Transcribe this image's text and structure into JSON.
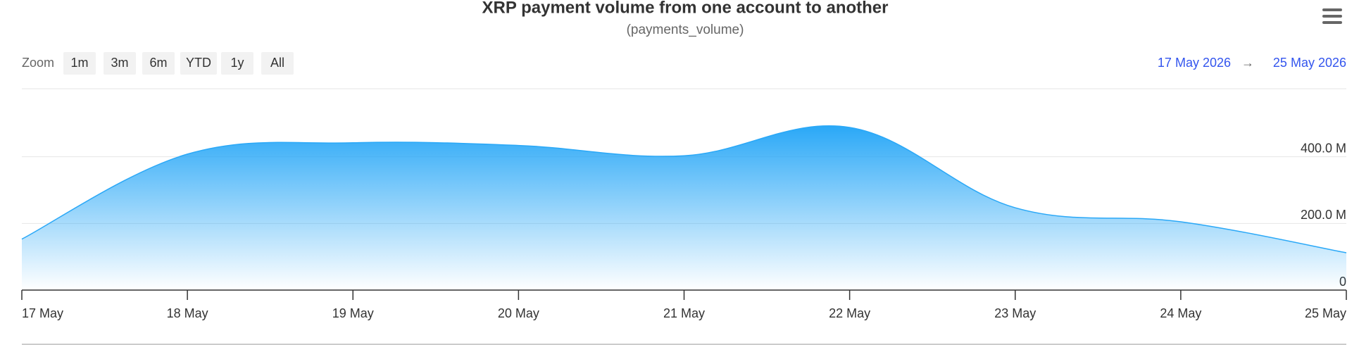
{
  "chart_data": {
    "type": "area",
    "title": "XRP payment volume from one account to another",
    "subtitle": "(payments_volume)",
    "zoom_label": "Zoom",
    "zoom_buttons": [
      "1m",
      "3m",
      "6m",
      "YTD",
      "1y",
      "All"
    ],
    "range_from": "17 May 2026",
    "range_arrow": "→",
    "range_to": "25 May 2026",
    "categories": [
      "17 May",
      "18 May",
      "19 May",
      "20 May",
      "21 May",
      "22 May",
      "23 May",
      "24 May",
      "25 May"
    ],
    "series": [
      {
        "name": "payments_volume",
        "color": "#2aa8f7",
        "values": [
          153,
          408,
          442,
          434,
          403,
          488,
          247,
          205,
          112
        ]
      }
    ],
    "ylim": [
      0,
      600
    ],
    "yticks": [
      0,
      {
        "value": 200,
        "label": "200.0 M"
      },
      {
        "value": 400,
        "label": "400.0 M"
      }
    ],
    "grid": true
  }
}
